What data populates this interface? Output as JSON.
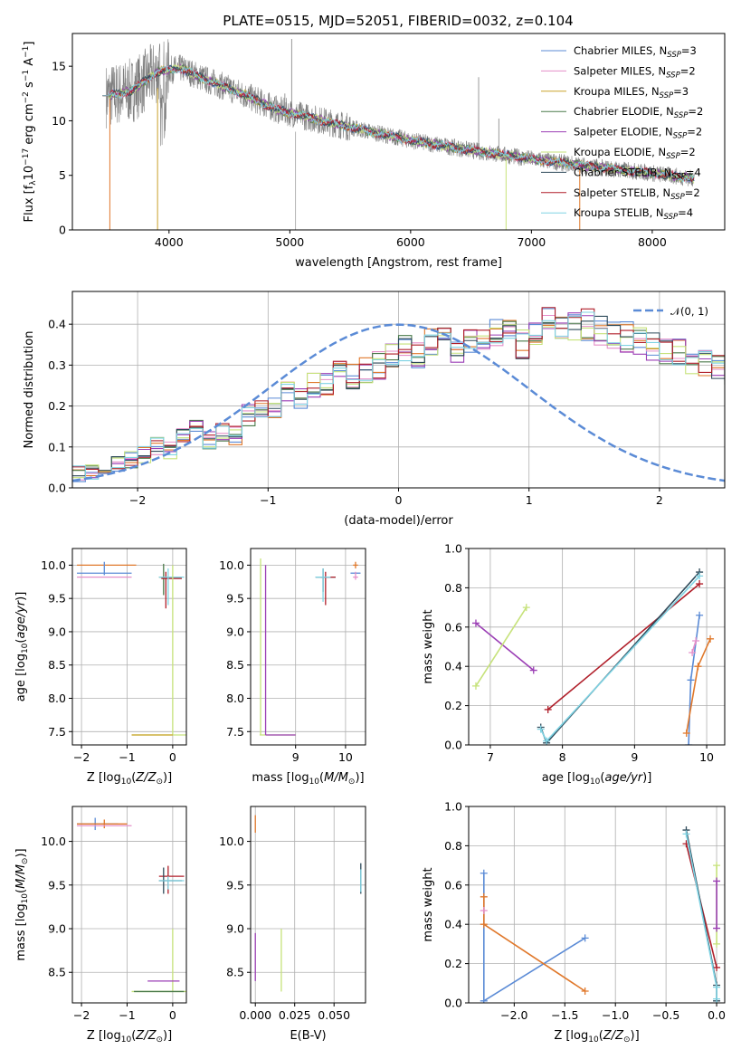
{
  "suptitle": "PLATE=0515, MJD=52051, FIBERID=0032, z=0.104",
  "colors": {
    "Chabrier MILES": "#5b8bd6",
    "Salpeter MILES": "#e58fc9",
    "Kroupa MILES": "#c9a22a",
    "Chabrier ELODIE": "#4a7a4a",
    "Salpeter ELODIE": "#9b3fb5",
    "Kroupa ELODIE": "#c6e27a",
    "Chabrier STELIB": "#2e4a5a",
    "Salpeter STELIB": "#b01f2a",
    "Kroupa STELIB": "#7fd3e3",
    "spectrum": "#808080",
    "orange": "#e0782b",
    "normal": "#5b8bd6"
  },
  "chart_data": [
    {
      "id": "spectrum",
      "type": "line",
      "xlabel": "wavelength [Angstrom, rest frame]",
      "ylabel": "Flux [f",
      "ylabel_parts": [
        "Flux [f",
        "λ",
        "10",
        "−17",
        " erg cm",
        "−2",
        " s",
        "−1",
        " A",
        "−1",
        "]"
      ],
      "xlim": [
        3200,
        8600
      ],
      "ylim": [
        0,
        18
      ],
      "xticks": [
        "4000",
        "5000",
        "6000",
        "7000",
        "8000"
      ],
      "yticks": [
        "0",
        "5",
        "10",
        "15"
      ],
      "legend_position": "upper right",
      "legend": [
        {
          "name": "Chabrier MILES",
          "nssp": "3"
        },
        {
          "name": "Salpeter MILES",
          "nssp": "2"
        },
        {
          "name": "Kroupa MILES",
          "nssp": "3"
        },
        {
          "name": "Chabrier ELODIE",
          "nssp": "2"
        },
        {
          "name": "Salpeter ELODIE",
          "nssp": "2"
        },
        {
          "name": "Kroupa ELODIE",
          "nssp": "2"
        },
        {
          "name": "Chabrier STELIB",
          "nssp": "4"
        },
        {
          "name": "Salpeter STELIB",
          "nssp": "2"
        },
        {
          "name": "Kroupa STELIB",
          "nssp": "4"
        }
      ],
      "continuum": {
        "x": [
          3500,
          3700,
          3900,
          4100,
          4300,
          4600,
          4900,
          5200,
          5500,
          6000,
          6500,
          7000,
          7500,
          8000,
          8350
        ],
        "y": [
          12.3,
          12.8,
          14.5,
          14.8,
          13.8,
          12.5,
          11.0,
          10.2,
          9.4,
          8.2,
          7.3,
          6.5,
          5.8,
          5.2,
          4.7
        ]
      },
      "emission_lines": [
        {
          "x": 5015,
          "y": 17.5
        },
        {
          "x": 6563,
          "y": 14
        },
        {
          "x": 6730,
          "y": 10.2
        },
        {
          "x": 4959,
          "y": 12.5
        }
      ]
    },
    {
      "id": "residual-hist",
      "type": "histogram",
      "xlabel": "(data-model)/error",
      "ylabel": "Normed distribution",
      "xlim": [
        -2.5,
        2.5
      ],
      "ylim": [
        0,
        0.48
      ],
      "xticks": [
        "−2",
        "−1",
        "0",
        "1",
        "2"
      ],
      "yticks": [
        "0.0",
        "0.1",
        "0.2",
        "0.3",
        "0.4"
      ],
      "legend": [
        "𝒩(0, 1)"
      ],
      "legend_position": "upper right",
      "bin_width": 0.1,
      "bin_start": -2.5,
      "base": [
        0.035,
        0.04,
        0.05,
        0.06,
        0.07,
        0.08,
        0.1,
        0.09,
        0.12,
        0.15,
        0.12,
        0.14,
        0.13,
        0.18,
        0.19,
        0.2,
        0.24,
        0.22,
        0.25,
        0.26,
        0.28,
        0.27,
        0.29,
        0.3,
        0.32,
        0.34,
        0.33,
        0.35,
        0.36,
        0.34,
        0.37,
        0.36,
        0.38,
        0.37,
        0.35,
        0.39,
        0.4,
        0.38,
        0.39,
        0.4,
        0.39,
        0.38,
        0.37,
        0.36,
        0.35,
        0.34,
        0.33,
        0.31,
        0.3,
        0.29,
        0.28,
        0.27,
        0.26,
        0.24,
        0.22,
        0.21,
        0.19,
        0.17,
        0.15,
        0.13,
        0.12,
        0.1,
        0.09,
        0.08,
        0.07,
        0.06,
        0.06,
        0.05,
        0.05,
        0.04,
        0.04,
        0.035,
        0.03,
        0.03,
        0.03,
        0.025,
        0.025,
        0.02,
        0.02,
        0.02
      ]
    },
    {
      "id": "age-vs-Z",
      "type": "errorbar",
      "xlabel": "Z [log",
      "ylabel": "age  [log",
      "xlim": [
        -2.2,
        0.3
      ],
      "ylim": [
        7.3,
        10.25
      ],
      "xticks": [
        "−2",
        "−1",
        "0"
      ],
      "yticks": [
        "7.5",
        "8.0",
        "8.5",
        "9.0",
        "9.5",
        "10.0"
      ],
      "bars": [
        {
          "c": "orange",
          "x": -1.45,
          "y": 10.0,
          "x0": -2.1,
          "x1": -0.8,
          "y0": 10.0,
          "y1": 10.0
        },
        {
          "c": "Chabrier MILES",
          "x": -1.5,
          "y": 9.88,
          "x0": -2.1,
          "x1": -0.9,
          "y0": 9.85,
          "y1": 10.05
        },
        {
          "c": "Salpeter MILES",
          "x": -1.5,
          "y": 9.82,
          "x0": -2.1,
          "x1": -0.9,
          "y0": 9.82,
          "y1": 9.82
        },
        {
          "c": "Chabrier ELODIE",
          "x": -0.2,
          "y": 9.82,
          "x0": -0.3,
          "x1": 0.2,
          "y0": 9.55,
          "y1": 10.02
        },
        {
          "c": "Salpeter STELIB",
          "x": -0.15,
          "y": 9.8,
          "x0": -0.25,
          "x1": 0.2,
          "y0": 9.35,
          "y1": 9.9
        },
        {
          "c": "Kroupa STELIB",
          "x": -0.1,
          "y": 9.82,
          "x0": -0.3,
          "x1": 0.25,
          "y0": 9.4,
          "y1": 9.95
        },
        {
          "c": "Kroupa ELODIE",
          "x": 0.0,
          "y": 7.45,
          "x0": -0.9,
          "x1": 0.3,
          "y0": 7.45,
          "y1": 10.0
        },
        {
          "c": "Kroupa MILES",
          "x": 0.0,
          "y": 7.45,
          "x0": -0.9,
          "x1": 0.0,
          "y0": 7.45,
          "y1": 7.45
        }
      ]
    },
    {
      "id": "age-vs-mass",
      "type": "errorbar",
      "xlabel": "mass [log",
      "xlim": [
        8.1,
        10.4
      ],
      "ylim": [
        7.3,
        10.25
      ],
      "xticks": [
        "9",
        "10"
      ],
      "yticks": [
        "7.5",
        "8.0",
        "8.5",
        "9.0",
        "9.5",
        "10.0"
      ],
      "bars": [
        {
          "c": "Kroupa ELODIE",
          "x": 8.3,
          "y": 7.45,
          "x0": 8.28,
          "x1": 9.0,
          "y0": 7.45,
          "y1": 10.1
        },
        {
          "c": "Salpeter ELODIE",
          "x": 8.4,
          "y": 7.45,
          "x0": 8.4,
          "x1": 9.0,
          "y0": 7.45,
          "y1": 10.0
        },
        {
          "c": "Chabrier STELIB",
          "x": 9.55,
          "y": 9.82,
          "x0": 9.4,
          "x1": 9.8,
          "y0": 9.6,
          "y1": 9.95
        },
        {
          "c": "Salpeter STELIB",
          "x": 9.6,
          "y": 9.82,
          "x0": 9.5,
          "x1": 9.8,
          "y0": 9.4,
          "y1": 9.9
        },
        {
          "c": "Kroupa STELIB",
          "x": 9.55,
          "y": 9.82,
          "x0": 9.4,
          "x1": 9.7,
          "y0": 9.45,
          "y1": 9.95
        },
        {
          "c": "orange",
          "x": 10.2,
          "y": 10.0,
          "x0": 10.15,
          "x1": 10.25,
          "y0": 9.95,
          "y1": 10.05
        },
        {
          "c": "Chabrier MILES",
          "x": 10.2,
          "y": 9.88,
          "x0": 10.1,
          "x1": 10.3,
          "y0": 9.88,
          "y1": 9.88
        },
        {
          "c": "Salpeter MILES",
          "x": 10.2,
          "y": 9.82,
          "x0": 10.15,
          "x1": 10.25,
          "y0": 9.78,
          "y1": 9.9
        }
      ]
    },
    {
      "id": "weight-vs-age",
      "type": "line",
      "xlabel": "age  [log",
      "ylabel": "mass weight",
      "xlim": [
        6.7,
        10.25
      ],
      "ylim": [
        0,
        1
      ],
      "xticks": [
        "7",
        "8",
        "9",
        "10"
      ],
      "yticks": [
        "0.0",
        "0.2",
        "0.4",
        "0.6",
        "0.8",
        "1.0"
      ],
      "series": [
        {
          "c": "Chabrier MILES",
          "x": [
            9.78,
            9.9
          ],
          "y": [
            0.33,
            0.66
          ]
        },
        {
          "c": "Chabrier MILES",
          "x": [
            9.75,
            9.78
          ],
          "y": [
            0.0,
            0.33
          ]
        },
        {
          "c": "orange",
          "x": [
            9.72,
            9.88,
            10.05
          ],
          "y": [
            0.06,
            0.4,
            0.54
          ]
        },
        {
          "c": "Salpeter MILES",
          "x": [
            9.8,
            9.85
          ],
          "y": [
            0.47,
            0.53
          ]
        },
        {
          "c": "Salpeter ELODIE",
          "x": [
            6.8,
            7.6
          ],
          "y": [
            0.62,
            0.38
          ]
        },
        {
          "c": "Kroupa ELODIE",
          "x": [
            6.8,
            7.5
          ],
          "y": [
            0.3,
            0.7
          ]
        },
        {
          "c": "Salpeter STELIB",
          "x": [
            7.8,
            9.9
          ],
          "y": [
            0.18,
            0.82
          ]
        },
        {
          "c": "Chabrier STELIB",
          "x": [
            7.7,
            7.78,
            9.9
          ],
          "y": [
            0.09,
            0.01,
            0.88
          ]
        },
        {
          "c": "Kroupa STELIB",
          "x": [
            7.7,
            7.78,
            9.9
          ],
          "y": [
            0.08,
            0.02,
            0.86
          ]
        }
      ]
    },
    {
      "id": "mass-vs-Z",
      "type": "errorbar",
      "xlabel": "Z [log",
      "ylabel": "mass [log",
      "xlim": [
        -2.2,
        0.3
      ],
      "ylim": [
        8.15,
        10.4
      ],
      "xticks": [
        "−2",
        "−1",
        "0"
      ],
      "yticks": [
        "8.5",
        "9.0",
        "9.5",
        "10.0"
      ],
      "bars": [
        {
          "c": "Chabrier MILES",
          "x": -1.7,
          "y": 10.2,
          "x0": -2.1,
          "x1": -1.2,
          "y0": 10.13,
          "y1": 10.27
        },
        {
          "c": "orange",
          "x": -1.5,
          "y": 10.2,
          "x0": -2.1,
          "x1": -1.0,
          "y0": 10.15,
          "y1": 10.25
        },
        {
          "c": "Salpeter MILES",
          "x": -1.5,
          "y": 10.18,
          "x0": -2.1,
          "x1": -0.9,
          "y0": 10.18,
          "y1": 10.18
        },
        {
          "c": "Salpeter STELIB",
          "x": -0.1,
          "y": 9.6,
          "x0": -0.3,
          "x1": 0.25,
          "y0": 9.4,
          "y1": 9.72
        },
        {
          "c": "Chabrier STELIB",
          "x": -0.2,
          "y": 9.55,
          "x0": -0.3,
          "x1": 0.2,
          "y0": 9.4,
          "y1": 9.7
        },
        {
          "c": "Kroupa STELIB",
          "x": -0.1,
          "y": 9.55,
          "x0": -0.3,
          "x1": 0.25,
          "y0": 9.45,
          "y1": 9.6
        },
        {
          "c": "Kroupa ELODIE",
          "x": 0.0,
          "y": 8.28,
          "x0": -0.9,
          "x1": 0.3,
          "y0": 8.28,
          "y1": 9.0
        },
        {
          "c": "Salpeter ELODIE",
          "x": -0.2,
          "y": 8.4,
          "x0": -0.55,
          "x1": 0.15,
          "y0": 8.4,
          "y1": 8.4
        },
        {
          "c": "Chabrier ELODIE",
          "x": -0.2,
          "y": 8.28,
          "x0": -0.85,
          "x1": 0.25,
          "y0": 8.28,
          "y1": 8.28
        }
      ]
    },
    {
      "id": "mass-vs-EBV",
      "type": "errorbar",
      "xlabel": "E(B-V)",
      "xlim": [
        -0.003,
        0.07
      ],
      "ylim": [
        8.15,
        10.4
      ],
      "xticks": [
        "0.000",
        "0.025",
        "0.050"
      ],
      "yticks": [
        "8.5",
        "9.0",
        "9.5",
        "10.0"
      ],
      "bars": [
        {
          "c": "orange",
          "x": 0.0,
          "y": 10.2,
          "x0": 0.0,
          "x1": 0.0,
          "y0": 10.1,
          "y1": 10.3
        },
        {
          "c": "Salpeter ELODIE",
          "x": 0.0,
          "y": 8.7,
          "x0": 0.0,
          "x1": 0.0,
          "y0": 8.4,
          "y1": 8.95
        },
        {
          "c": "Kroupa ELODIE",
          "x": 0.0165,
          "y": 8.6,
          "x0": 0.0165,
          "x1": 0.0165,
          "y0": 8.28,
          "y1": 9.0
        },
        {
          "c": "Chabrier STELIB",
          "x": 0.067,
          "y": 9.55,
          "x0": 0.067,
          "x1": 0.067,
          "y0": 9.4,
          "y1": 9.75
        },
        {
          "c": "Kroupa STELIB",
          "x": 0.067,
          "y": 9.55,
          "x0": 0.067,
          "x1": 0.067,
          "y0": 9.42,
          "y1": 9.68
        }
      ]
    },
    {
      "id": "weight-vs-Z",
      "type": "line",
      "xlabel": "Z [log",
      "ylabel": "mass weight",
      "xlim": [
        -2.45,
        0.08
      ],
      "ylim": [
        0,
        1
      ],
      "xticks": [
        "−2.0",
        "−1.5",
        "−1.0",
        "−0.5",
        "0.0"
      ],
      "yticks": [
        "0.0",
        "0.2",
        "0.4",
        "0.6",
        "0.8",
        "1.0"
      ],
      "series": [
        {
          "c": "Chabrier MILES",
          "x": [
            -2.3,
            -2.3,
            -1.3
          ],
          "y": [
            0.66,
            0.01,
            0.33
          ]
        },
        {
          "c": "orange",
          "x": [
            -2.3,
            -2.3,
            -1.3
          ],
          "y": [
            0.54,
            0.4,
            0.06
          ]
        },
        {
          "c": "Salpeter MILES",
          "x": [
            -2.3
          ],
          "y": [
            0.47
          ]
        },
        {
          "c": "Salpeter STELIB",
          "x": [
            -0.3,
            0.0
          ],
          "y": [
            0.81,
            0.18
          ]
        },
        {
          "c": "Chabrier STELIB",
          "x": [
            -0.3,
            0.0,
            0.0
          ],
          "y": [
            0.88,
            0.09,
            0.01
          ]
        },
        {
          "c": "Kroupa STELIB",
          "x": [
            -0.3,
            0.0,
            0.0
          ],
          "y": [
            0.86,
            0.08,
            0.02
          ]
        },
        {
          "c": "Kroupa ELODIE",
          "x": [
            0.0,
            0.0
          ],
          "y": [
            0.7,
            0.3
          ]
        },
        {
          "c": "Salpeter ELODIE",
          "x": [
            0.0,
            0.0
          ],
          "y": [
            0.62,
            0.38
          ]
        }
      ]
    }
  ]
}
